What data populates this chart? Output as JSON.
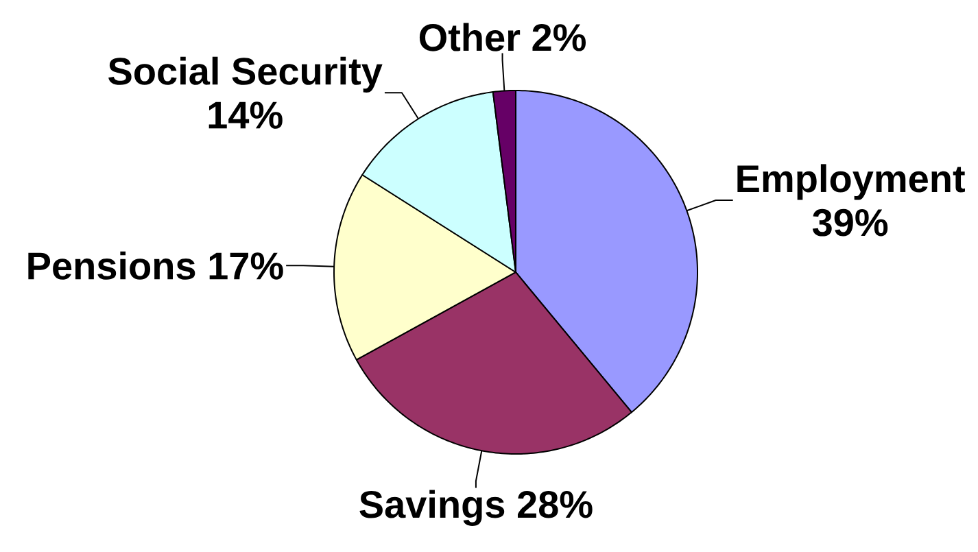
{
  "chart_data": {
    "type": "pie",
    "categories": [
      "Employment",
      "Savings",
      "Pensions",
      "Social Security",
      "Other"
    ],
    "values": [
      39,
      28,
      17,
      14,
      2
    ],
    "value_labels": [
      "39%",
      "28%",
      "17%",
      "14%",
      "2%"
    ],
    "colors": [
      "#9999ff",
      "#993366",
      "#ffffcc",
      "#ccffff",
      "#660066"
    ]
  }
}
